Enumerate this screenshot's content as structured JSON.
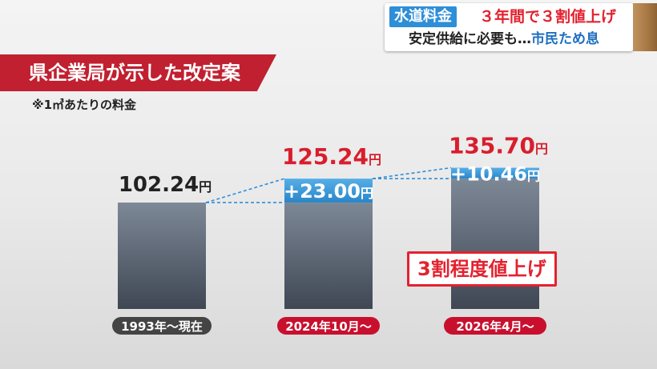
{
  "caption": {
    "tag": "水道料金",
    "line1": "３年間で３割値上げ",
    "line2_prefix": "安定供給に必要も…",
    "line2_highlight": "市民ため息"
  },
  "title": "県企業局が示した改定案",
  "note": "※1㎥あたりの料金",
  "callout": "3割程度値上げ",
  "chart_data": {
    "type": "bar",
    "categories": [
      "1993年〜現在",
      "2024年10月〜",
      "2026年4月〜"
    ],
    "series": [
      {
        "values": [
          102.24,
          102.24,
          125.24
        ]
      },
      {
        "values": [
          0,
          23.0,
          10.46
        ]
      }
    ],
    "totals": [
      102.24,
      125.24,
      135.7
    ],
    "total_labels": [
      "102.24",
      "125.24",
      "135.70"
    ],
    "increase_labels": [
      "",
      "+23.00",
      "+10.46"
    ],
    "unit": "円",
    "stacked": true,
    "colors": {
      "base": "#5f6a78",
      "increase": "#3b9ad6",
      "total_highlight": "#d81e2d"
    },
    "grid": false
  }
}
